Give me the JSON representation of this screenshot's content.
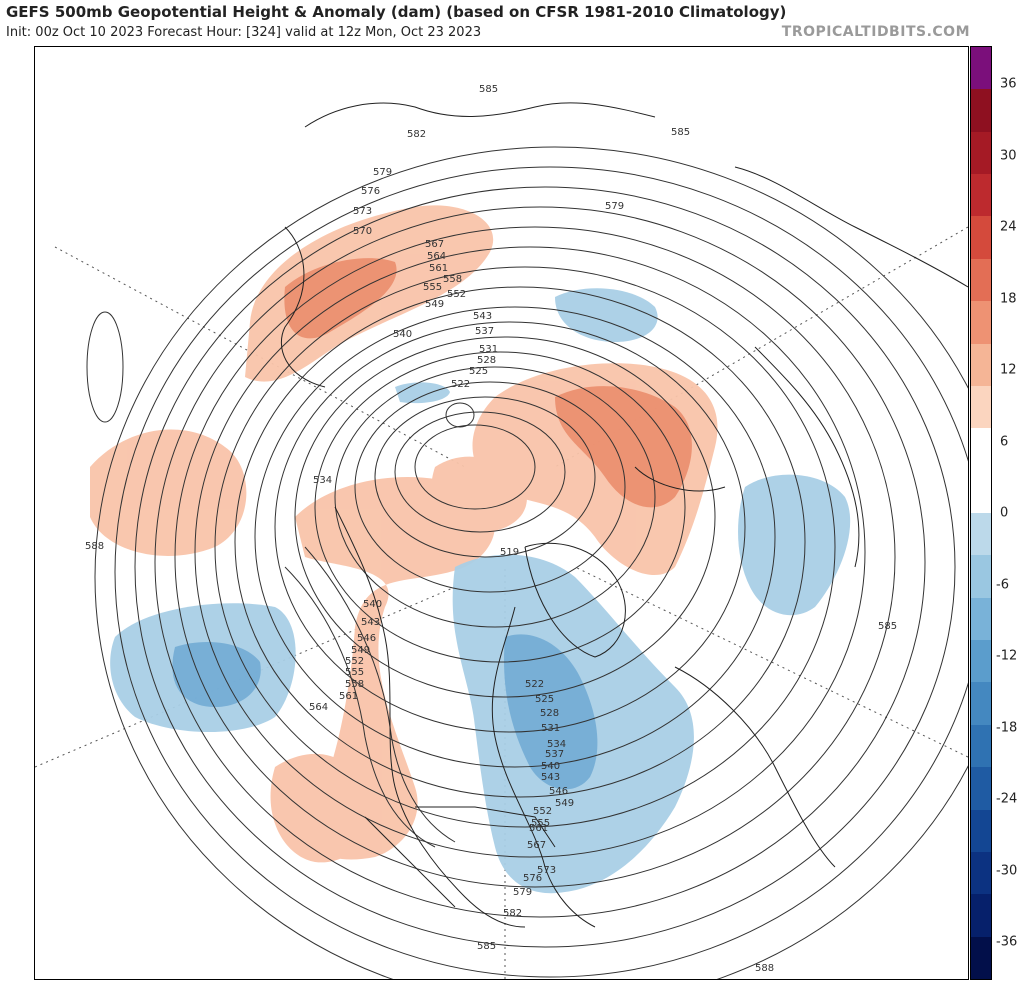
{
  "title": "GEFS 500mb Geopotential Height & Anomaly (dam) (based on CFSR 1981-2010 Climatology)",
  "subtitle": "Init: 00z Oct 10 2023   Forecast Hour: [324]   valid at 12z Mon, Oct 23 2023",
  "credit": "TROPICALTIDBITS.COM",
  "colorbar": {
    "ticks": [
      "36",
      "30",
      "24",
      "18",
      "12",
      "6",
      "0",
      "-6",
      "-12",
      "-18",
      "-24",
      "-30",
      "-36"
    ],
    "colors": [
      "#7b0f7b",
      "#8e1020",
      "#a51a25",
      "#bd2a2e",
      "#d44a3c",
      "#e36e55",
      "#ee9273",
      "#f5b596",
      "#fbd5bf",
      "#ffffff",
      "#ffffff",
      "#bcd9ea",
      "#9ac7e1",
      "#79b2d8",
      "#5b9dcc",
      "#4488c0",
      "#2f72b2",
      "#1f5ba3",
      "#134693",
      "#0c3281",
      "#06206b",
      "#020f4a"
    ]
  },
  "map_features": {
    "anomaly_positive": "#f7b89a",
    "anomaly_negative": "#8cc0df",
    "contour_color": "#333333",
    "coastline_color": "#222222"
  },
  "contour_labels": [
    "585",
    "582",
    "579",
    "576",
    "573",
    "570",
    "567",
    "564",
    "561",
    "558",
    "555",
    "552",
    "549",
    "543",
    "540",
    "537",
    "531",
    "528",
    "525",
    "522",
    "534",
    "519",
    "588",
    "540",
    "543",
    "546",
    "549",
    "552",
    "555",
    "558",
    "561",
    "564",
    "522",
    "525",
    "528",
    "531",
    "534",
    "537",
    "540",
    "543",
    "546",
    "549",
    "552",
    "555",
    "561",
    "567",
    "573",
    "576",
    "579",
    "582",
    "585",
    "585",
    "588",
    "579",
    "585"
  ]
}
